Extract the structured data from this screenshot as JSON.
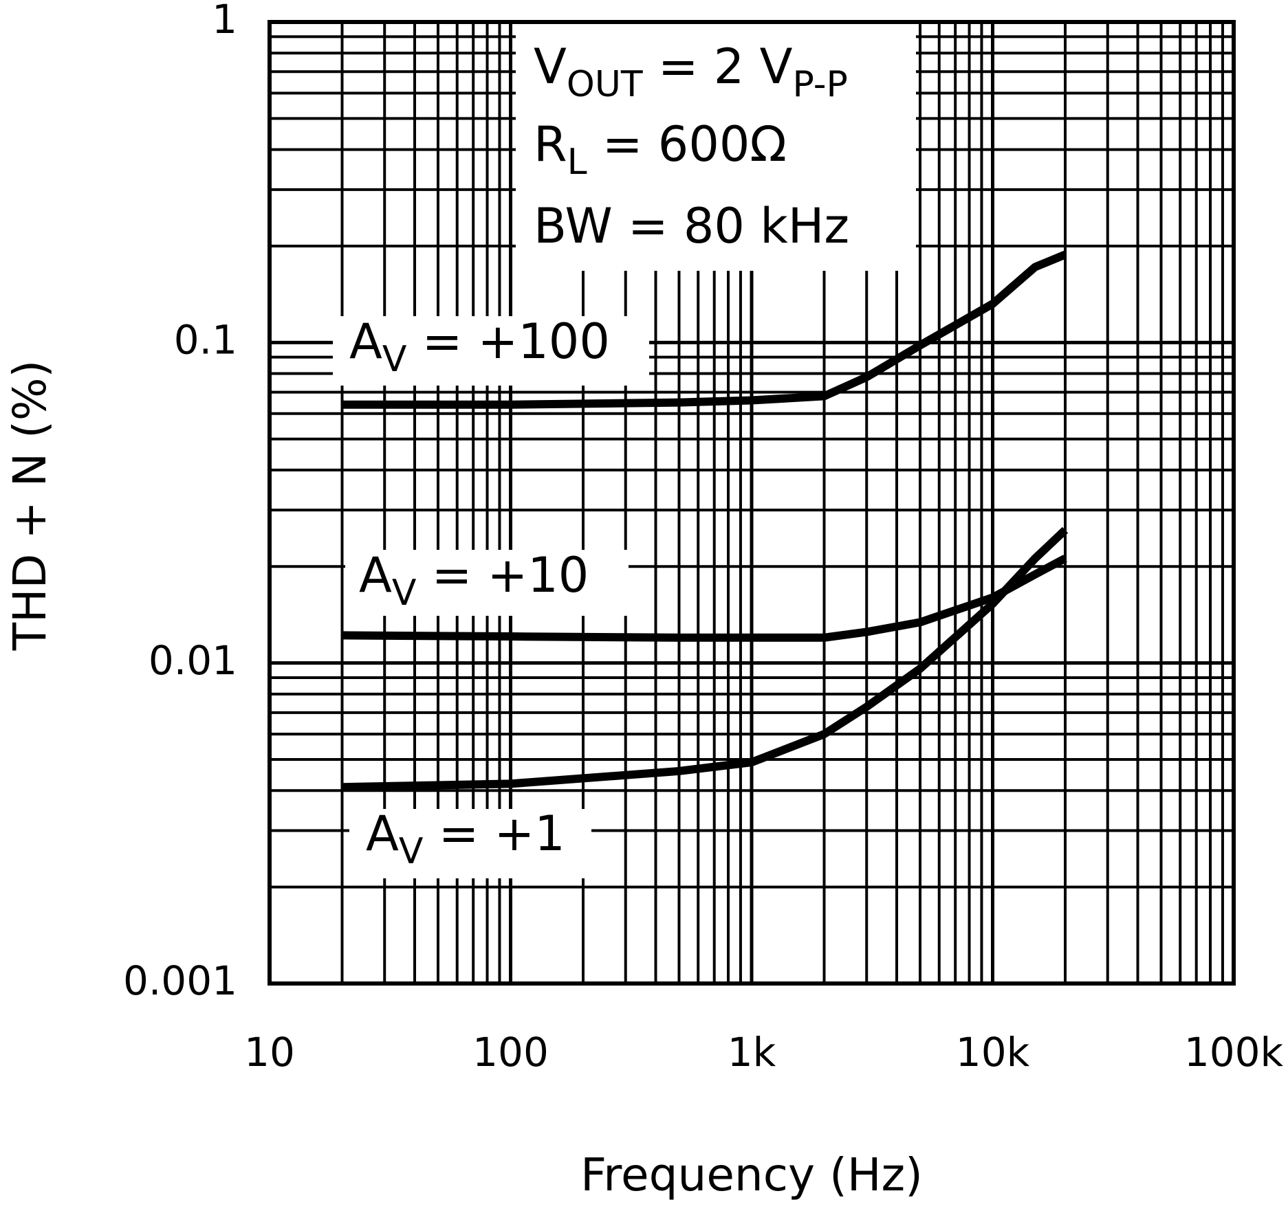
{
  "chart_data": {
    "type": "line",
    "x_label": "Frequency (Hz)",
    "y_label": "THD + N (%)",
    "log_x": true,
    "log_y": true,
    "grid": true,
    "xlim": [
      10,
      100000
    ],
    "xticks": [
      10,
      100,
      {
        "value": 1000,
        "label": "1k"
      },
      {
        "value": 10000,
        "label": "10k"
      },
      {
        "value": 100000,
        "label": "100k"
      }
    ],
    "ylim": [
      0.001,
      1
    ],
    "yticks": [
      0.001,
      0.01,
      0.1,
      1
    ],
    "x": [
      20,
      100,
      500,
      1000,
      2000,
      3000,
      5000,
      10000,
      15000,
      20000
    ],
    "series": [
      {
        "color": "#000000",
        "values": [
          0.064,
          0.064,
          0.065,
          0.066,
          0.068,
          0.078,
          0.098,
          0.132,
          0.172,
          0.188
        ]
      },
      {
        "color": "#000000",
        "values": [
          0.0122,
          0.0121,
          0.012,
          0.012,
          0.012,
          0.0125,
          0.0134,
          0.016,
          0.0189,
          0.0212
        ]
      },
      {
        "color": "#000000",
        "values": [
          0.0041,
          0.0042,
          0.0046,
          0.0049,
          0.006,
          0.0073,
          0.0096,
          0.0153,
          0.0212,
          0.026
        ]
      }
    ],
    "annotations": [
      {
        "runs": [
          {
            "text": "V"
          },
          {
            "text": "OUT",
            "sub": true
          },
          {
            "text": " = 2 V"
          },
          {
            "text": "P-P",
            "sub": true
          }
        ]
      },
      {
        "runs": [
          {
            "text": "R"
          },
          {
            "text": "L",
            "sub": true
          },
          {
            "text": " = 600Ω"
          }
        ]
      },
      {
        "runs": [
          {
            "text": "BW = 80 kHz"
          }
        ]
      },
      {
        "runs": [
          {
            "text": "A"
          },
          {
            "text": "V",
            "sub": true
          },
          {
            "text": " = +100"
          }
        ]
      },
      {
        "runs": [
          {
            "text": "A"
          },
          {
            "text": "V",
            "sub": true
          },
          {
            "text": " = +10"
          }
        ]
      },
      {
        "runs": [
          {
            "text": "A"
          },
          {
            "text": "V",
            "sub": true
          },
          {
            "text": " = +1"
          }
        ]
      }
    ]
  }
}
